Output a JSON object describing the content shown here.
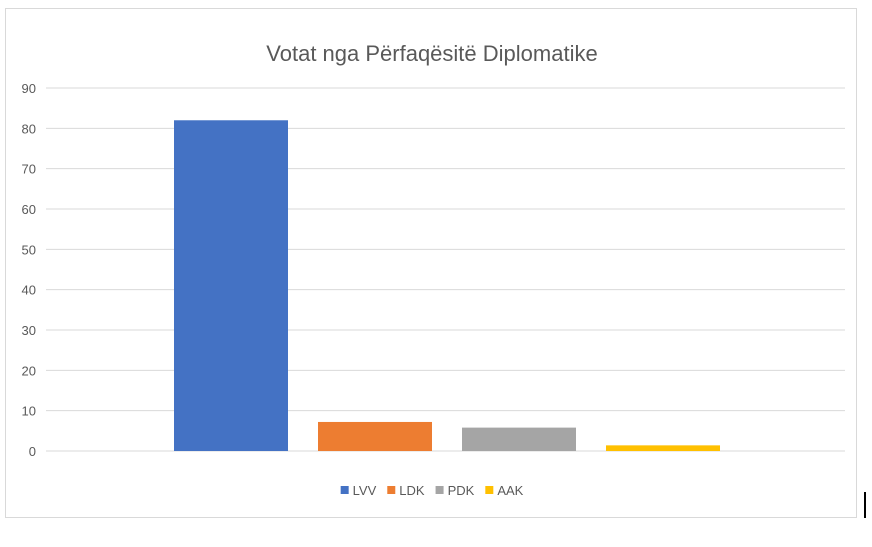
{
  "chart_data": {
    "type": "bar",
    "title": "Votat nga Përfaqësitë Diplomatike",
    "categories": [
      "LVV",
      "LDK",
      "PDK",
      "AAK"
    ],
    "values": [
      82,
      7.2,
      5.8,
      1.4
    ],
    "colors": [
      "#4472c4",
      "#ed7d31",
      "#a5a5a5",
      "#ffc000"
    ],
    "ylim": [
      0,
      90
    ],
    "yticks": [
      0,
      10,
      20,
      30,
      40,
      50,
      60,
      70,
      80,
      90
    ],
    "grid": true,
    "legend": "bottom",
    "xlabel": "",
    "ylabel": ""
  }
}
